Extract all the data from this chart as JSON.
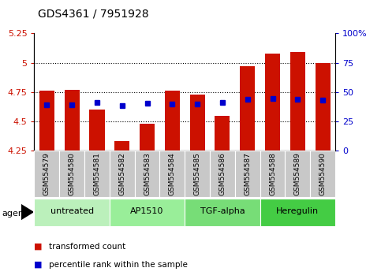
{
  "title": "GDS4361 / 7951928",
  "samples": [
    "GSM554579",
    "GSM554580",
    "GSM554581",
    "GSM554582",
    "GSM554583",
    "GSM554584",
    "GSM554585",
    "GSM554586",
    "GSM554587",
    "GSM554588",
    "GSM554589",
    "GSM554590"
  ],
  "red_bar_values": [
    4.76,
    4.77,
    4.6,
    4.33,
    4.48,
    4.76,
    4.73,
    4.55,
    4.97,
    5.08,
    5.09,
    5.0
  ],
  "blue_dot_values": [
    4.64,
    4.64,
    4.66,
    4.635,
    4.652,
    4.645,
    4.645,
    4.66,
    4.685,
    4.692,
    4.685,
    4.682
  ],
  "bar_bottom": 4.25,
  "ylim_left": [
    4.25,
    5.25
  ],
  "ylim_right": [
    0,
    100
  ],
  "yticks_left": [
    4.25,
    4.5,
    4.75,
    5.0,
    5.25
  ],
  "yticks_right": [
    0,
    25,
    50,
    75,
    100
  ],
  "ytick_labels_left": [
    "4.25",
    "4.5",
    "4.75",
    "5",
    "5.25"
  ],
  "ytick_labels_right": [
    "0",
    "25",
    "50",
    "75",
    "100%"
  ],
  "agent_groups": [
    {
      "label": "untreated",
      "start": 0,
      "end": 2,
      "color": "#bbf0bb"
    },
    {
      "label": "AP1510",
      "start": 3,
      "end": 5,
      "color": "#99ee99"
    },
    {
      "label": "TGF-alpha",
      "start": 6,
      "end": 8,
      "color": "#77dd77"
    },
    {
      "label": "Heregulin",
      "start": 9,
      "end": 11,
      "color": "#44cc44"
    }
  ],
  "red_color": "#cc1100",
  "blue_color": "#0000cc",
  "bar_width": 0.6,
  "legend_items": [
    "transformed count",
    "percentile rank within the sample"
  ],
  "dotted_lines": [
    4.5,
    4.75,
    5.0
  ],
  "xtick_gray": "#c8c8c8"
}
